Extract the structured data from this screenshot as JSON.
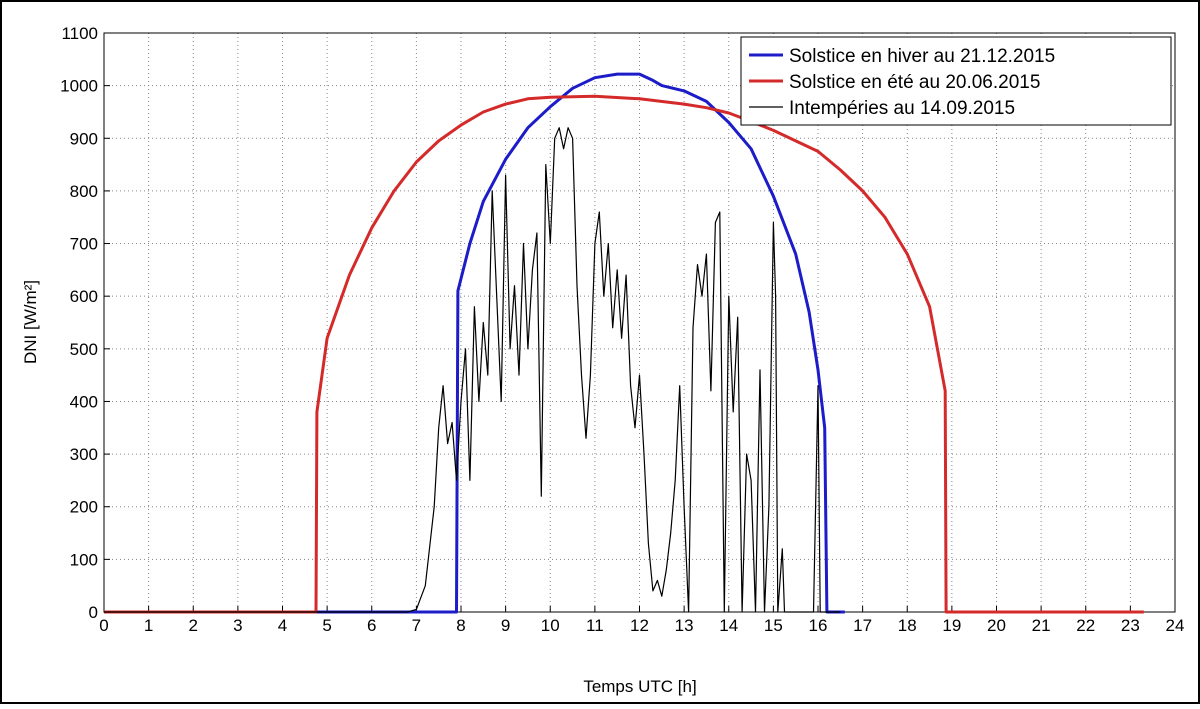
{
  "chart_data": {
    "type": "line",
    "xlabel": "Temps UTC [h]",
    "ylabel": "DNI [W/m²]",
    "xlim": [
      0,
      24
    ],
    "xticks": [
      0,
      1,
      2,
      3,
      4,
      5,
      6,
      7,
      8,
      9,
      10,
      11,
      12,
      13,
      14,
      15,
      16,
      17,
      18,
      19,
      20,
      21,
      22,
      23,
      24
    ],
    "ylim": [
      0,
      1100
    ],
    "yticks": [
      0,
      100,
      200,
      300,
      400,
      500,
      600,
      700,
      800,
      900,
      1000,
      1100
    ],
    "grid": true,
    "legend": "upper right",
    "series": [
      {
        "name": "Solstice en hiver au 21.12.2015",
        "color": "#1c1cc8",
        "width": 3,
        "x": [
          0,
          7.9,
          7.93,
          8.2,
          8.5,
          9,
          9.5,
          10,
          10.5,
          11,
          11.5,
          12,
          12.3,
          12.5,
          13,
          13.5,
          14,
          14.5,
          15,
          15.5,
          15.8,
          16,
          16.15,
          16.2,
          16.6
        ],
        "values": [
          0,
          0,
          610,
          700,
          780,
          860,
          920,
          960,
          995,
          1015,
          1022,
          1022,
          1010,
          1000,
          990,
          970,
          930,
          880,
          790,
          680,
          570,
          460,
          350,
          0,
          0
        ]
      },
      {
        "name": "Solstice en été au 20.06.2015",
        "color": "#d42a2a",
        "width": 3,
        "x": [
          0,
          4.75,
          4.77,
          5,
          5.5,
          6,
          6.5,
          7,
          7.5,
          8,
          8.5,
          9,
          9.5,
          10,
          11,
          12,
          13,
          13.5,
          14,
          14.5,
          15,
          15.5,
          16,
          16.5,
          17,
          17.5,
          18,
          18.5,
          18.85,
          18.87,
          23.3
        ],
        "values": [
          0,
          0,
          380,
          520,
          640,
          730,
          800,
          855,
          895,
          925,
          950,
          965,
          975,
          978,
          980,
          975,
          965,
          958,
          948,
          932,
          915,
          895,
          875,
          840,
          800,
          750,
          680,
          580,
          420,
          0,
          0
        ]
      },
      {
        "name": "Intempéries au 14.09.2015",
        "color": "#000000",
        "width": 1.2,
        "x": [
          0,
          6.8,
          7,
          7.2,
          7.4,
          7.5,
          7.6,
          7.7,
          7.8,
          7.9,
          8,
          8.1,
          8.2,
          8.3,
          8.4,
          8.5,
          8.6,
          8.7,
          8.8,
          8.9,
          9,
          9.1,
          9.2,
          9.3,
          9.4,
          9.5,
          9.6,
          9.7,
          9.8,
          9.9,
          10,
          10.1,
          10.2,
          10.3,
          10.4,
          10.5,
          10.6,
          10.7,
          10.8,
          10.9,
          11,
          11.1,
          11.2,
          11.3,
          11.4,
          11.5,
          11.6,
          11.7,
          11.8,
          11.9,
          12,
          12.1,
          12.2,
          12.3,
          12.4,
          12.5,
          12.6,
          12.7,
          12.8,
          12.9,
          13,
          13.1,
          13.2,
          13.3,
          13.4,
          13.5,
          13.6,
          13.7,
          13.8,
          13.9,
          14,
          14.1,
          14.2,
          14.3,
          14.4,
          14.5,
          14.6,
          14.7,
          14.8,
          14.9,
          15,
          15.05,
          15.1,
          15.2,
          15.25,
          15.9,
          16,
          16.05,
          16.5
        ],
        "values": [
          0,
          0,
          5,
          50,
          200,
          350,
          430,
          320,
          360,
          250,
          400,
          500,
          250,
          580,
          400,
          550,
          450,
          800,
          600,
          400,
          830,
          500,
          620,
          450,
          700,
          500,
          650,
          720,
          220,
          850,
          700,
          900,
          920,
          880,
          920,
          900,
          620,
          450,
          330,
          450,
          700,
          760,
          600,
          700,
          540,
          650,
          520,
          640,
          430,
          350,
          450,
          300,
          130,
          40,
          60,
          30,
          80,
          150,
          250,
          430,
          200,
          0,
          540,
          660,
          600,
          680,
          420,
          740,
          760,
          0,
          600,
          380,
          560,
          0,
          300,
          250,
          0,
          460,
          0,
          200,
          740,
          600,
          0,
          120,
          0,
          0,
          430,
          0,
          0
        ]
      }
    ]
  }
}
